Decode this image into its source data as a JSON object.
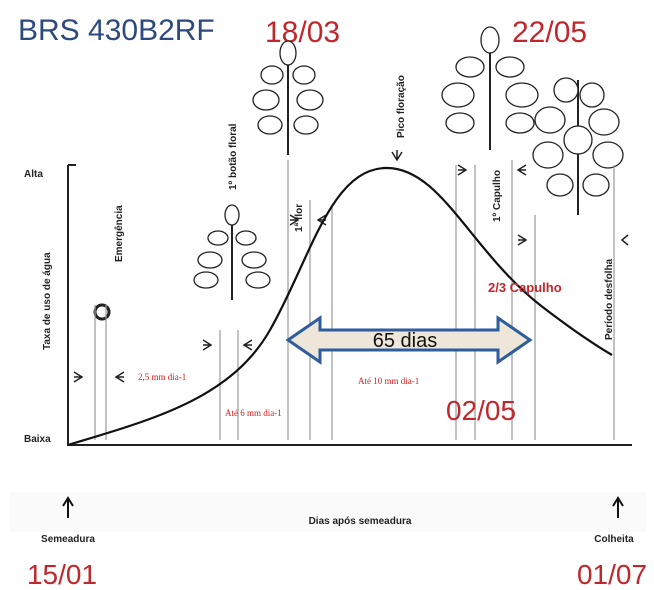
{
  "title": "BRS 430B2RF",
  "dates": {
    "peak_start": "18/03",
    "peak_end": "22/05",
    "mid": "02/05",
    "sowing": "15/01",
    "harvest": "01/07"
  },
  "stages": {
    "emergence": "Emergência",
    "first_bud": "1º botão floral",
    "first_flower": "1ª flor",
    "peak_flowering": "Pico floração",
    "first_boll": "1º Capulho",
    "defoliation": "Período desfolha",
    "two_thirds_boll": "2/3 Capulho"
  },
  "duration": "65 dias",
  "rates": [
    "2,5 mm dia-1",
    "Até 6 mm dia-1",
    "Até 10 mm dia-1"
  ],
  "y_axis": {
    "label": "Taxa de uso de água",
    "high": "Alta",
    "low": "Baixa"
  },
  "x_axis": {
    "label": "Dias após semeadura",
    "start": "Semeadura",
    "end": "Colheita"
  }
}
